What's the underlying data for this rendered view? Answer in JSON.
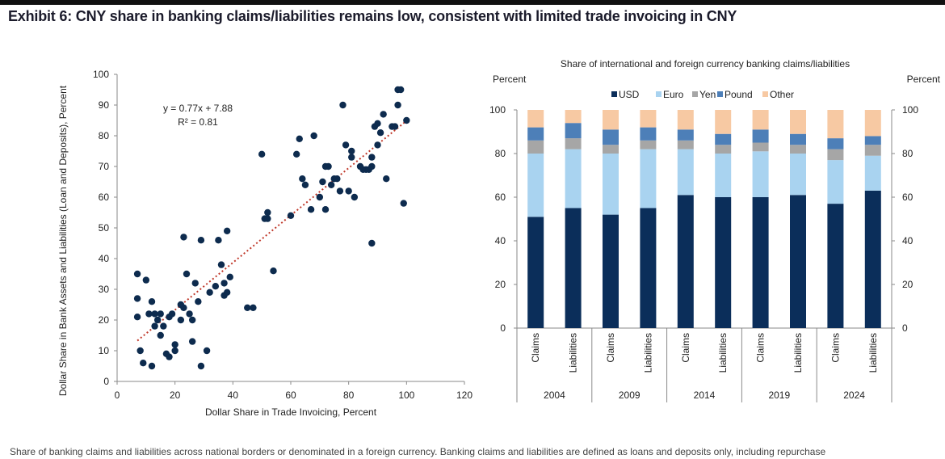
{
  "exhibit_title": "Exhibit 6: CNY share in banking claims/liabilities remains low, consistent with limited trade invoicing in CNY",
  "footnote": "Share of banking claims and liabilities across national borders or denominated in a foreign currency. Banking claims and liabilities are defined as loans and deposits only, including repurchase",
  "colors": {
    "scatter_point": "#0d2b4e",
    "trendline": "#c0392b",
    "usd": "#0b2e5a",
    "euro": "#a9d3f0",
    "yen": "#a6a6a6",
    "pound": "#4d7fb8",
    "other": "#f7c9a3"
  },
  "chart_data": [
    {
      "type": "scatter",
      "title": "",
      "xlabel": "Dollar Share in Trade Invoicing, Percent",
      "ylabel": "Dollar Share in Bank Assets and Liabilities (Loan and Deposits), Percent",
      "xlim": [
        0,
        120
      ],
      "ylim": [
        0,
        100
      ],
      "xticks": [
        "0",
        "20",
        "40",
        "60",
        "80",
        "100",
        "120"
      ],
      "yticks": [
        "0",
        "10",
        "20",
        "30",
        "40",
        "50",
        "60",
        "70",
        "80",
        "90",
        "100"
      ],
      "grid": false,
      "trendline": {
        "slope": 0.77,
        "intercept": 7.88,
        "style": "dotted"
      },
      "annotations": [
        "y = 0.77x + 7.88",
        "R² = 0.81"
      ],
      "points": [
        [
          7,
          35
        ],
        [
          7,
          27
        ],
        [
          7,
          21
        ],
        [
          8,
          10
        ],
        [
          9,
          6
        ],
        [
          10,
          33
        ],
        [
          11,
          22
        ],
        [
          12,
          26
        ],
        [
          12,
          5
        ],
        [
          13,
          22
        ],
        [
          13,
          18
        ],
        [
          14,
          20
        ],
        [
          15,
          22
        ],
        [
          15,
          15
        ],
        [
          16,
          18
        ],
        [
          17,
          9
        ],
        [
          18,
          8
        ],
        [
          18,
          21
        ],
        [
          19,
          22
        ],
        [
          20,
          10
        ],
        [
          20,
          12
        ],
        [
          22,
          25
        ],
        [
          22,
          20
        ],
        [
          23,
          24
        ],
        [
          23,
          47
        ],
        [
          24,
          35
        ],
        [
          25,
          22
        ],
        [
          26,
          20
        ],
        [
          26,
          13
        ],
        [
          27,
          32
        ],
        [
          28,
          26
        ],
        [
          29,
          5
        ],
        [
          29,
          46
        ],
        [
          31,
          10
        ],
        [
          32,
          29
        ],
        [
          34,
          31
        ],
        [
          35,
          46
        ],
        [
          36,
          38
        ],
        [
          37,
          32
        ],
        [
          37,
          28
        ],
        [
          38,
          29
        ],
        [
          38,
          49
        ],
        [
          39,
          34
        ],
        [
          45,
          24
        ],
        [
          47,
          24
        ],
        [
          50,
          74
        ],
        [
          51,
          53
        ],
        [
          52,
          55
        ],
        [
          52,
          53
        ],
        [
          54,
          36
        ],
        [
          60,
          54
        ],
        [
          62,
          74
        ],
        [
          63,
          79
        ],
        [
          64,
          66
        ],
        [
          65,
          64
        ],
        [
          67,
          56
        ],
        [
          68,
          80
        ],
        [
          70,
          60
        ],
        [
          71,
          65
        ],
        [
          72,
          56
        ],
        [
          72,
          70
        ],
        [
          73,
          70
        ],
        [
          74,
          64
        ],
        [
          75,
          66
        ],
        [
          76,
          66
        ],
        [
          77,
          62
        ],
        [
          78,
          90
        ],
        [
          79,
          77
        ],
        [
          80,
          62
        ],
        [
          81,
          73
        ],
        [
          81,
          75
        ],
        [
          82,
          60
        ],
        [
          84,
          70
        ],
        [
          85,
          69
        ],
        [
          86,
          69
        ],
        [
          87,
          69
        ],
        [
          88,
          45
        ],
        [
          88,
          73
        ],
        [
          88,
          70
        ],
        [
          89,
          83
        ],
        [
          90,
          84
        ],
        [
          90,
          77
        ],
        [
          91,
          81
        ],
        [
          92,
          87
        ],
        [
          93,
          66
        ],
        [
          95,
          83
        ],
        [
          96,
          83
        ],
        [
          97,
          90
        ],
        [
          97,
          95
        ],
        [
          98,
          95
        ],
        [
          99,
          58
        ],
        [
          100,
          85
        ]
      ]
    },
    {
      "type": "bar",
      "stacked": true,
      "title": "Share of international and foreign currency banking claims/liabilities",
      "ylabel_left": "Percent",
      "ylabel_right": "Percent",
      "ylim": [
        0,
        100
      ],
      "yticks": [
        "0",
        "20",
        "40",
        "60",
        "80",
        "100"
      ],
      "legend_position": "top",
      "grid": false,
      "categories": [
        "Claims",
        "Liabilities",
        "Claims",
        "Liabilities",
        "Claims",
        "Liabilities",
        "Claims",
        "Liabilities",
        "Claims",
        "Liabilities"
      ],
      "groups": [
        "2004",
        "2009",
        "2014",
        "2019",
        "2024"
      ],
      "series": [
        {
          "name": "USD",
          "values": [
            51,
            55,
            52,
            55,
            61,
            60,
            60,
            61,
            57,
            63
          ]
        },
        {
          "name": "Euro",
          "values": [
            29,
            27,
            28,
            27,
            21,
            20,
            21,
            19,
            20,
            16
          ]
        },
        {
          "name": "Yen",
          "values": [
            6,
            5,
            4,
            4,
            4,
            4,
            4,
            4,
            5,
            5
          ]
        },
        {
          "name": "Pound",
          "values": [
            6,
            7,
            7,
            6,
            5,
            5,
            6,
            5,
            5,
            4
          ]
        },
        {
          "name": "Other",
          "values": [
            8,
            6,
            9,
            8,
            9,
            11,
            9,
            11,
            13,
            12
          ]
        }
      ]
    }
  ]
}
